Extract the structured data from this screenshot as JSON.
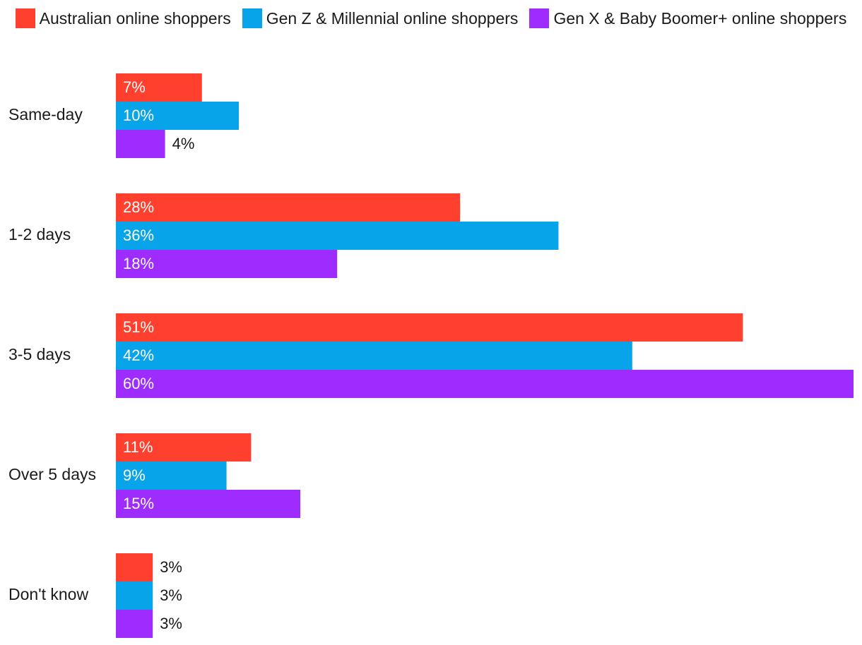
{
  "chart_data": {
    "type": "bar",
    "orientation": "horizontal",
    "categories": [
      "Same-day",
      "1-2 days",
      "3-5 days",
      "Over 5 days",
      "Don't know"
    ],
    "series": [
      {
        "name": "Australian online shoppers",
        "values": [
          7,
          28,
          51,
          11,
          3
        ],
        "labels": [
          "7%",
          "28%",
          "51%",
          "11%",
          "3%"
        ],
        "color": "#ff402e"
      },
      {
        "name": "Gen Z & Millennial online shoppers",
        "values": [
          10,
          36,
          42,
          9,
          3
        ],
        "labels": [
          "10%",
          "36%",
          "42%",
          "9%",
          "3%"
        ],
        "color": "#08a4ea"
      },
      {
        "name": "Gen X & Baby Boomer+ online shoppers",
        "values": [
          4,
          18,
          60,
          15,
          3
        ],
        "labels": [
          "4%",
          "18%",
          "60%",
          "15%",
          "3%"
        ],
        "color": "#9e2cff"
      }
    ],
    "unit": "%",
    "xlim": [
      0,
      60
    ],
    "grid": false,
    "legend_position": "top"
  }
}
